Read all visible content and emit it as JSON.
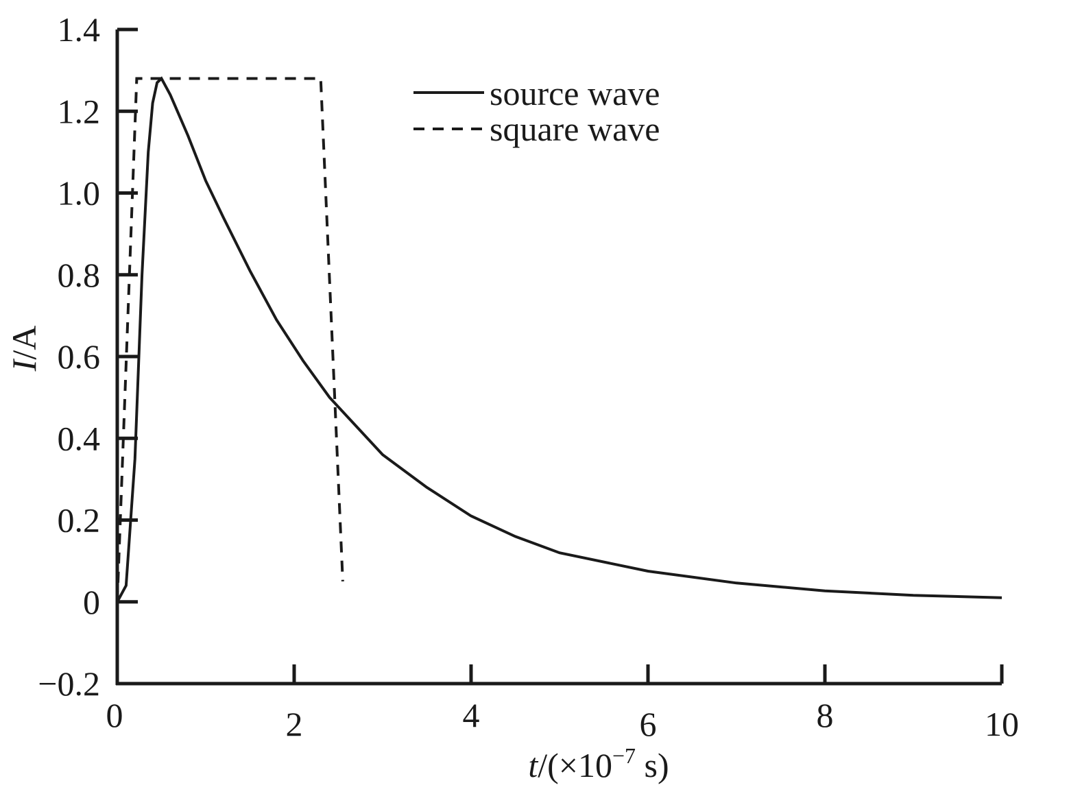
{
  "chart_data": {
    "type": "line",
    "title": "",
    "xlabel": {
      "italic": "t",
      "prefix": "/(×10",
      "exponent": "−7",
      "suffix": " s)"
    },
    "ylabel": {
      "italic": "I",
      "rest": "/A"
    },
    "xlim": [
      0,
      10
    ],
    "ylim": [
      -0.2,
      1.4
    ],
    "xticks": [
      0,
      2,
      4,
      6,
      8,
      10
    ],
    "xtick_labels": [
      "0",
      "2",
      "4",
      "6",
      "8",
      "10"
    ],
    "yticks": [
      -0.2,
      0,
      0.2,
      0.4,
      0.6,
      0.8,
      1.0,
      1.2,
      1.4
    ],
    "ytick_labels": [
      "−0.2",
      "0",
      "0.2",
      "0.4",
      "0.6",
      "0.8",
      "1.0",
      "1.2",
      "1.4"
    ],
    "grid": false,
    "legend_position": "top-right",
    "series": [
      {
        "name": "source wave",
        "style": "solid",
        "color": "#1a1a1a",
        "x": [
          0,
          0.1,
          0.2,
          0.28,
          0.35,
          0.4,
          0.45,
          0.5,
          0.6,
          0.8,
          1.0,
          1.2,
          1.5,
          1.8,
          2.1,
          2.4,
          2.7,
          3.0,
          3.5,
          4.0,
          4.5,
          5.0,
          6.0,
          7.0,
          8.0,
          9.0,
          10.0
        ],
        "y": [
          0,
          0.04,
          0.35,
          0.8,
          1.1,
          1.22,
          1.27,
          1.28,
          1.24,
          1.14,
          1.03,
          0.94,
          0.81,
          0.69,
          0.59,
          0.5,
          0.43,
          0.36,
          0.28,
          0.21,
          0.16,
          0.12,
          0.075,
          0.046,
          0.027,
          0.016,
          0.01
        ]
      },
      {
        "name": "square wave",
        "style": "dashed",
        "color": "#1a1a1a",
        "x": [
          0,
          0.22,
          2.3,
          2.55
        ],
        "y": [
          0,
          1.28,
          1.28,
          0.05
        ]
      }
    ]
  }
}
